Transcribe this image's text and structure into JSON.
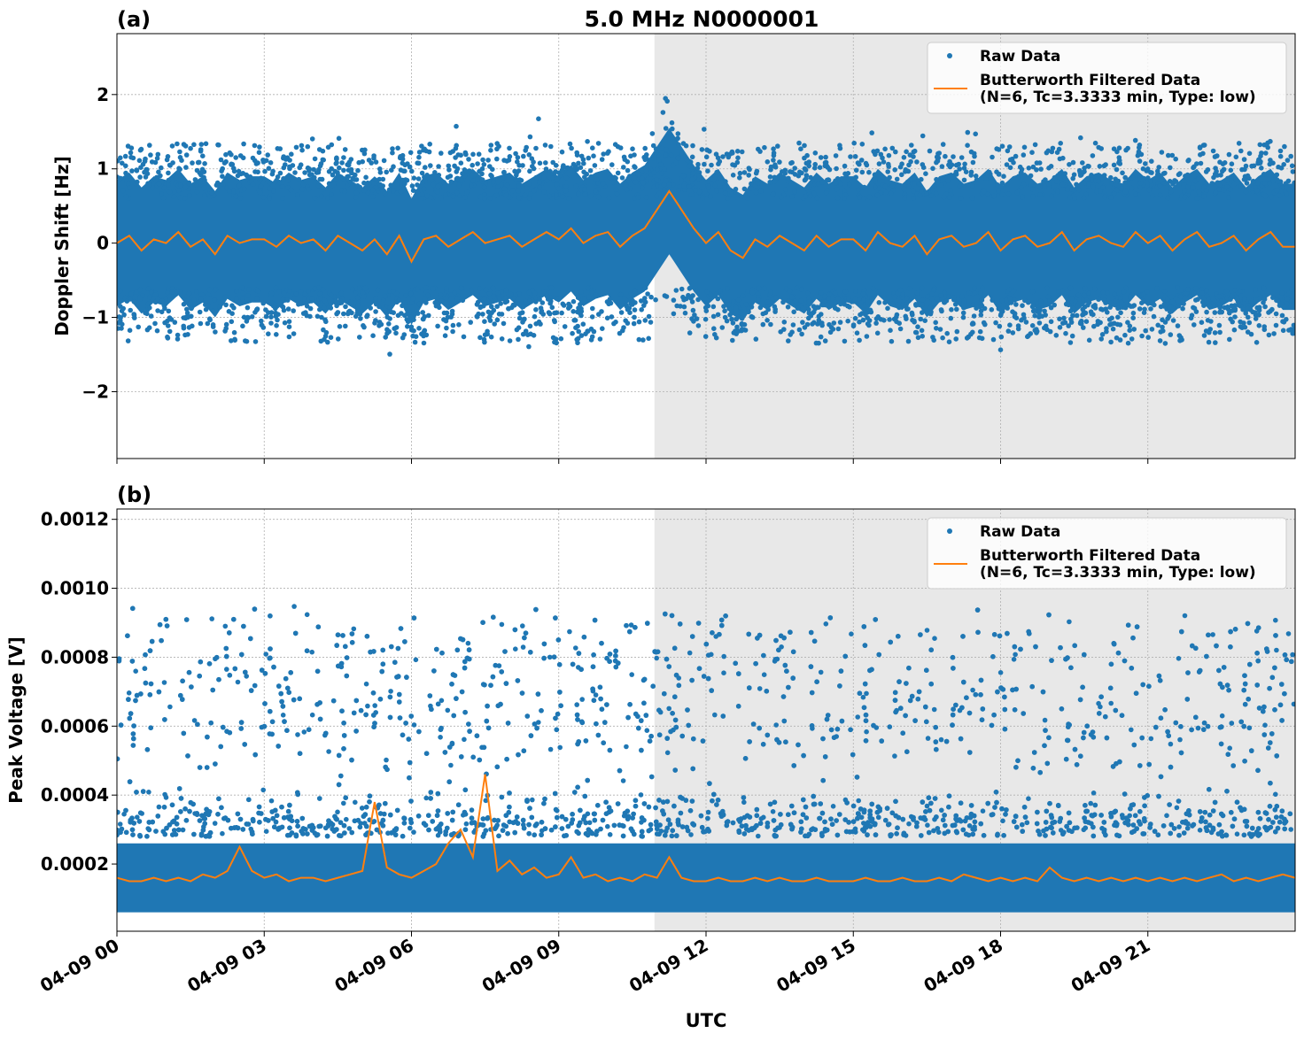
{
  "title": "5.0 MHz N0000001",
  "chart_data": [
    {
      "type": "scatter",
      "panel_label": "(a)",
      "ylabel": "Doppler Shift [Hz]",
      "ylim": [
        -2.9,
        2.82
      ],
      "yticks": [
        -2,
        -1,
        0,
        1,
        2
      ],
      "ytick_labels": [
        "−2",
        "−1",
        "0",
        "1",
        "2"
      ],
      "grid": true,
      "legend_placement": "top-right",
      "legend": [
        "Raw Data",
        "Butterworth Filtered Data\n(N=6, Tc=3.3333 min, Type: low)"
      ],
      "legend_lines": [
        "Raw Data",
        "Butterworth Filtered Data",
        "(N=6, Tc=3.3333 min, Type: low)"
      ],
      "shaded_region_hours": [
        10.95,
        24
      ],
      "raw_spread": 1.0,
      "filtered_step_hours": 0.25,
      "filtered_values": [
        0,
        0.1,
        -0.1,
        0.05,
        0,
        0.15,
        -0.05,
        0.05,
        -0.15,
        0.1,
        0,
        0.05,
        0.05,
        -0.05,
        0.1,
        0,
        0.05,
        -0.1,
        0.1,
        0,
        -0.1,
        0.05,
        -0.15,
        0.1,
        -0.25,
        0.05,
        0.1,
        -0.05,
        0.05,
        0.15,
        0,
        0.05,
        0.1,
        -0.05,
        0.05,
        0.15,
        0.05,
        0.2,
        0.0,
        0.1,
        0.15,
        -0.05,
        0.1,
        0.2,
        0.45,
        0.7,
        0.45,
        0.2,
        0,
        0.15,
        -0.1,
        -0.2,
        0.05,
        -0.05,
        0.1,
        0,
        -0.1,
        0.1,
        -0.05,
        0.05,
        0.05,
        -0.1,
        0.15,
        0,
        -0.05,
        0.1,
        -0.15,
        0.05,
        0.1,
        -0.05,
        0,
        0.15,
        -0.1,
        0.05,
        0.1,
        -0.05,
        0,
        0.15,
        -0.1,
        0.05,
        0.1,
        0,
        -0.05,
        0.15,
        0,
        0.1,
        -0.1,
        0.05,
        0.15,
        -0.05,
        0,
        0.1,
        -0.1,
        0.05,
        0.15,
        -0.05,
        -0.05
      ]
    },
    {
      "type": "scatter",
      "panel_label": "(b)",
      "ylabel": "Peak Voltage [V]",
      "xlabel": "UTC",
      "ylim": [
        5e-06,
        0.00123
      ],
      "yticks": [
        0.0002,
        0.0004,
        0.0006,
        0.0008,
        0.001,
        0.0012
      ],
      "ytick_labels": [
        "0.0002",
        "0.0004",
        "0.0006",
        "0.0008",
        "0.0010",
        "0.0012"
      ],
      "grid": true,
      "legend_placement": "top-right",
      "legend_lines": [
        "Raw Data",
        "Butterworth Filtered Data",
        "(N=6, Tc=3.3333 min, Type: low)"
      ],
      "shaded_region_hours": [
        10.95,
        24
      ],
      "raw_core_range": [
        7e-05,
        0.00028
      ],
      "raw_upper_range": [
        0.0005,
        0.0009
      ],
      "filtered_step_hours": 0.25,
      "filtered_values": [
        0.00016,
        0.00015,
        0.00015,
        0.00016,
        0.00015,
        0.00016,
        0.00015,
        0.00017,
        0.00016,
        0.00018,
        0.00025,
        0.00018,
        0.00016,
        0.00017,
        0.00015,
        0.00016,
        0.00016,
        0.00015,
        0.00016,
        0.00017,
        0.00018,
        0.00038,
        0.00019,
        0.00017,
        0.00016,
        0.00018,
        0.0002,
        0.00026,
        0.0003,
        0.00022,
        0.00046,
        0.00018,
        0.00021,
        0.00017,
        0.00019,
        0.00016,
        0.00017,
        0.00022,
        0.00016,
        0.00017,
        0.00015,
        0.00016,
        0.00015,
        0.00017,
        0.00016,
        0.00022,
        0.00016,
        0.00015,
        0.00015,
        0.00016,
        0.00015,
        0.00015,
        0.00016,
        0.00015,
        0.00016,
        0.00015,
        0.00015,
        0.00016,
        0.00015,
        0.00015,
        0.00015,
        0.00016,
        0.00015,
        0.00015,
        0.00016,
        0.00015,
        0.00015,
        0.00016,
        0.00015,
        0.00017,
        0.00016,
        0.00015,
        0.00016,
        0.00015,
        0.00016,
        0.00015,
        0.00019,
        0.00016,
        0.00015,
        0.00016,
        0.00015,
        0.00016,
        0.00015,
        0.00016,
        0.00015,
        0.00016,
        0.00015,
        0.00016,
        0.00015,
        0.00016,
        0.00017,
        0.00015,
        0.00016,
        0.00015,
        0.00016,
        0.00017,
        0.00016
      ]
    }
  ],
  "xaxis": {
    "label": "UTC",
    "range_hours": [
      0,
      24
    ],
    "tick_hours": [
      0,
      3,
      6,
      9,
      12,
      15,
      18,
      21
    ],
    "tick_labels": [
      "04-09 00",
      "04-09 03",
      "04-09 06",
      "04-09 09",
      "04-09 12",
      "04-09 15",
      "04-09 18",
      "04-09 21"
    ]
  },
  "colors": {
    "raw": "#1f77b4",
    "filtered": "#ff7f0e",
    "shade": "#e8e8e8",
    "grid": "#b0b0b0"
  }
}
